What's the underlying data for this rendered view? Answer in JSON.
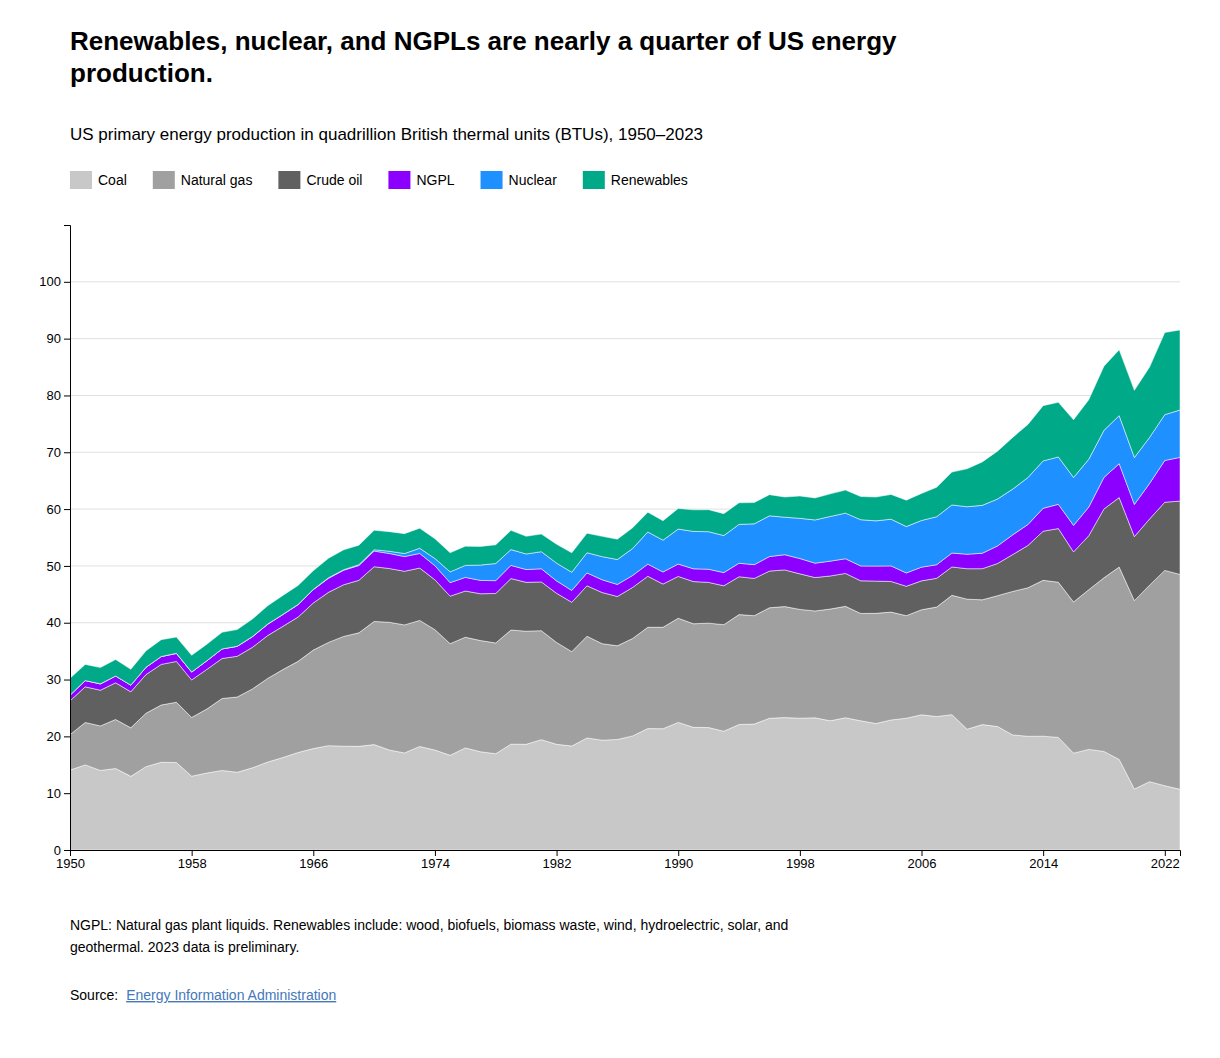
{
  "chart_data": {
    "type": "area",
    "stacked": true,
    "title": "Renewables, nuclear, and NGPLs are nearly a quarter of US energy\nproduction.",
    "subtitle": "US primary energy production in quadrillion British thermal units (BTUs), 1950–2023",
    "footnote": "NGPL: Natural gas plant liquids. Renewables include: wood, biofuels, biomass waste, wind, hydroelectric, solar, and\ngeothermal. 2023 data is preliminary.",
    "source_text": "Source: ",
    "source_link": "Energy Information Administration",
    "legend": "top-left",
    "grid": true,
    "xlim": [
      1950,
      2023
    ],
    "xticks": [
      1950,
      1958,
      1966,
      1974,
      1982,
      1990,
      1998,
      2006,
      2014,
      2022
    ],
    "ylim": [
      0,
      110
    ],
    "yticks": [
      0,
      10,
      20,
      30,
      40,
      50,
      60,
      70,
      80,
      90,
      100
    ],
    "x": [
      1950,
      1951,
      1952,
      1953,
      1954,
      1955,
      1956,
      1957,
      1958,
      1959,
      1960,
      1961,
      1962,
      1963,
      1964,
      1965,
      1966,
      1967,
      1968,
      1969,
      1970,
      1971,
      1972,
      1973,
      1974,
      1975,
      1976,
      1977,
      1978,
      1979,
      1980,
      1981,
      1982,
      1983,
      1984,
      1985,
      1986,
      1987,
      1988,
      1989,
      1990,
      1991,
      1992,
      1993,
      1994,
      1995,
      1996,
      1997,
      1998,
      1999,
      2000,
      2001,
      2002,
      2003,
      2004,
      2005,
      2006,
      2007,
      2008,
      2009,
      2010,
      2011,
      2012,
      2013,
      2014,
      2015,
      2016,
      2017,
      2018,
      2019,
      2020,
      2021,
      2022,
      2023
    ],
    "series": [
      {
        "name": "Coal",
        "color": "#c8c8c8",
        "values": [
          14.06,
          14.98,
          14.01,
          14.34,
          12.96,
          14.67,
          15.44,
          15.39,
          12.99,
          13.55,
          14.0,
          13.68,
          14.47,
          15.47,
          16.28,
          17.16,
          17.85,
          18.37,
          18.27,
          18.24,
          18.55,
          17.59,
          17.09,
          18.22,
          17.58,
          16.67,
          17.97,
          17.29,
          16.95,
          18.63,
          18.6,
          19.42,
          18.6,
          18.3,
          19.72,
          19.33,
          19.46,
          20.08,
          21.37,
          21.35,
          22.46,
          21.59,
          21.55,
          20.9,
          22.09,
          22.16,
          23.18,
          23.3,
          23.2,
          23.26,
          22.74,
          23.27,
          22.74,
          22.26,
          22.89,
          23.19,
          23.79,
          23.49,
          23.82,
          21.26,
          22.07,
          21.73,
          20.25,
          20.01,
          20.03,
          19.82,
          17.05,
          17.71,
          17.35,
          15.93,
          10.72,
          12.03,
          11.31,
          10.68
        ]
      },
      {
        "name": "Natural gas",
        "color": "#a0a0a0",
        "values": [
          6.23,
          7.46,
          7.83,
          8.63,
          8.54,
          9.4,
          10.08,
          10.61,
          10.34,
          11.26,
          12.66,
          13.25,
          13.88,
          14.73,
          15.47,
          16.04,
          17.33,
          18.17,
          19.32,
          19.98,
          21.67,
          22.49,
          22.53,
          22.19,
          21.2,
          19.64,
          19.48,
          19.57,
          19.49,
          20.08,
          19.91,
          19.18,
          17.93,
          16.61,
          17.9,
          16.98,
          16.48,
          17.14,
          17.83,
          17.85,
          18.33,
          18.23,
          18.38,
          18.75,
          19.34,
          19.08,
          19.45,
          19.54,
          19.15,
          18.81,
          19.67,
          19.61,
          18.89,
          19.39,
          18.98,
          18.05,
          18.49,
          19.27,
          21.0,
          22.89,
          21.96,
          23.03,
          25.26,
          26.14,
          27.43,
          27.31,
          26.59,
          28.1,
          30.56,
          33.86,
          33.16,
          34.58,
          37.9,
          37.82
        ]
      },
      {
        "name": "Crude oil",
        "color": "#606060",
        "values": [
          5.94,
          6.28,
          6.28,
          6.46,
          6.34,
          6.81,
          7.15,
          7.19,
          6.6,
          6.98,
          7.04,
          7.17,
          7.32,
          7.54,
          7.61,
          7.8,
          8.29,
          8.81,
          9.1,
          9.24,
          9.64,
          9.46,
          9.44,
          9.21,
          8.77,
          8.37,
          8.13,
          8.24,
          8.71,
          9.07,
          8.6,
          8.58,
          8.65,
          8.69,
          8.88,
          9.0,
          8.68,
          8.99,
          8.97,
          7.61,
          7.36,
          7.42,
          7.17,
          6.85,
          6.66,
          6.56,
          6.46,
          6.46,
          6.25,
          5.88,
          5.82,
          5.8,
          5.75,
          5.68,
          5.39,
          5.18,
          5.09,
          5.06,
          5.0,
          5.35,
          5.48,
          5.66,
          6.49,
          7.45,
          8.65,
          9.44,
          8.83,
          9.51,
          12.12,
          12.23,
          11.28,
          11.65,
          12.0,
          12.91
        ]
      },
      {
        "name": "NGPL",
        "color": "#8B00FF",
        "values": [
          1.01,
          1.1,
          1.12,
          1.19,
          1.17,
          1.28,
          1.37,
          1.41,
          1.38,
          1.51,
          1.68,
          1.74,
          1.87,
          1.99,
          2.07,
          2.18,
          2.34,
          2.47,
          2.55,
          2.61,
          2.75,
          2.64,
          2.58,
          2.57,
          2.48,
          2.37,
          2.4,
          2.35,
          2.25,
          2.31,
          2.25,
          2.31,
          2.18,
          2.08,
          2.27,
          2.24,
          2.12,
          2.1,
          2.14,
          2.12,
          2.17,
          2.25,
          2.31,
          2.32,
          2.38,
          2.42,
          2.55,
          2.67,
          2.7,
          2.53,
          2.61,
          2.58,
          2.61,
          2.64,
          2.74,
          2.34,
          2.41,
          2.39,
          2.44,
          2.56,
          2.72,
          3.09,
          3.47,
          3.68,
          4.03,
          4.27,
          4.66,
          5.03,
          5.55,
          5.97,
          5.66,
          6.25,
          7.34,
          7.69
        ]
      },
      {
        "name": "Nuclear",
        "color": "#1E90FF",
        "values": [
          0.0,
          0.0,
          0.0,
          0.0,
          0.0,
          0.0,
          0.01,
          0.01,
          0.01,
          0.01,
          0.01,
          0.02,
          0.02,
          0.03,
          0.04,
          0.04,
          0.06,
          0.09,
          0.1,
          0.15,
          0.24,
          0.4,
          0.54,
          0.91,
          1.27,
          1.9,
          2.11,
          2.7,
          3.02,
          2.78,
          2.74,
          3.01,
          3.13,
          3.2,
          3.55,
          4.08,
          4.38,
          4.75,
          5.66,
          5.6,
          6.16,
          6.58,
          6.61,
          6.52,
          6.84,
          7.18,
          7.17,
          6.6,
          7.07,
          7.61,
          7.86,
          8.03,
          8.14,
          7.96,
          8.22,
          8.16,
          8.21,
          8.45,
          8.47,
          8.35,
          8.43,
          8.26,
          8.05,
          8.27,
          8.34,
          8.34,
          8.43,
          8.42,
          8.28,
          8.46,
          8.25,
          8.11,
          8.07,
          8.33
        ]
      },
      {
        "name": "Renewables",
        "color": "#00AA88",
        "values": [
          2.97,
          2.85,
          2.87,
          2.91,
          2.79,
          2.89,
          2.97,
          2.86,
          2.94,
          2.9,
          2.93,
          2.94,
          3.1,
          3.22,
          3.33,
          3.35,
          3.29,
          3.44,
          3.49,
          3.43,
          3.43,
          3.45,
          3.5,
          3.54,
          3.49,
          3.37,
          3.38,
          3.28,
          3.29,
          3.39,
          3.11,
          3.11,
          3.33,
          3.42,
          3.43,
          3.57,
          3.59,
          3.64,
          3.48,
          3.42,
          3.63,
          3.8,
          3.88,
          3.85,
          3.8,
          3.75,
          3.73,
          3.56,
          3.93,
          3.88,
          3.98,
          4.05,
          4.09,
          4.19,
          4.36,
          4.65,
          4.76,
          5.19,
          5.78,
          6.69,
          7.65,
          8.43,
          9.1,
          9.35,
          9.73,
          9.61,
          10.16,
          10.48,
          11.3,
          11.59,
          11.83,
          12.37,
          14.45,
          14.1
        ]
      }
    ]
  }
}
